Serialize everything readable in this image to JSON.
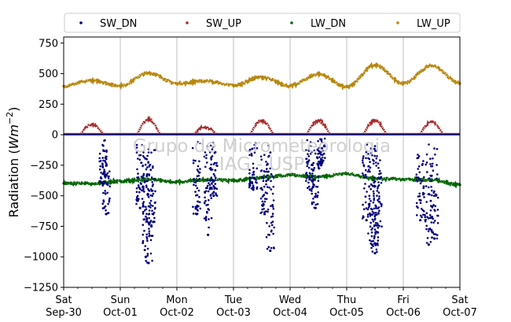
{
  "chart_data": {
    "type": "scatter",
    "ylabel_prefix": "Radiation (",
    "ylabel_unit": "Wm",
    "ylabel_exp": "−2",
    "ylabel_suffix": ")",
    "ylim": [
      -1250,
      800
    ],
    "yticks": [
      -1250,
      -1000,
      -750,
      -500,
      -250,
      0,
      250,
      500,
      750
    ],
    "ytick_labels": [
      "−1250",
      "−1000",
      "−750",
      "−500",
      "−250",
      "0",
      "250",
      "500",
      "750"
    ],
    "xlim": [
      0,
      7
    ],
    "xtick_labels": [
      {
        "day": "Sat",
        "date": "Sep-30"
      },
      {
        "day": "Sun",
        "date": "Oct-01"
      },
      {
        "day": "Mon",
        "date": "Oct-02"
      },
      {
        "day": "Tue",
        "date": "Oct-03"
      },
      {
        "day": "Wed",
        "date": "Oct-04"
      },
      {
        "day": "Thu",
        "date": "Oct-05"
      },
      {
        "day": "Fri",
        "date": "Oct-06"
      },
      {
        "day": "Sat",
        "date": "Oct-07"
      }
    ],
    "grid": "vertical",
    "legend_position": "top",
    "watermark_line1": "Grupo de Micrometeorologia",
    "watermark_line2": "IAG - USP",
    "series": [
      {
        "name": "SW_DN",
        "color": "#000080",
        "x": [
          0.7,
          0.75,
          1.35,
          1.45,
          1.5,
          1.55,
          2.35,
          2.55,
          2.65,
          3.35,
          3.55,
          3.65,
          4.35,
          4.45,
          4.55,
          5.35,
          5.45,
          5.5,
          5.55,
          6.3,
          6.45,
          6.55
        ],
        "y": [
          -400,
          -650,
          -600,
          -1000,
          -1050,
          -750,
          -650,
          -820,
          -500,
          -450,
          -650,
          -950,
          -450,
          -600,
          -250,
          -700,
          -900,
          -970,
          -800,
          -700,
          -900,
          -850
        ]
      },
      {
        "name": "SW_UP",
        "color": "#a52a2a",
        "x": [
          0.5,
          1.5,
          2.5,
          3.5,
          4.5,
          5.5,
          6.5
        ],
        "y": [
          85,
          125,
          60,
          115,
          115,
          115,
          105
        ]
      },
      {
        "name": "LW_DN",
        "color": "#006400",
        "x": [
          0.0,
          0.5,
          1.0,
          1.5,
          2.0,
          2.5,
          3.0,
          3.5,
          4.0,
          4.5,
          5.0,
          5.5,
          6.0,
          6.5,
          7.0
        ],
        "y": [
          -398,
          -400,
          -380,
          -365,
          -385,
          -370,
          -375,
          -350,
          -330,
          -345,
          -320,
          -360,
          -365,
          -370,
          -410
        ]
      },
      {
        "name": "LW_UP",
        "color": "#b8860b",
        "x": [
          0.0,
          0.5,
          1.0,
          1.5,
          2.0,
          2.5,
          3.0,
          3.5,
          4.0,
          4.5,
          5.0,
          5.5,
          6.0,
          6.5,
          7.0
        ],
        "y": [
          398,
          445,
          400,
          505,
          420,
          440,
          405,
          470,
          400,
          495,
          390,
          570,
          420,
          565,
          420
        ]
      }
    ]
  }
}
